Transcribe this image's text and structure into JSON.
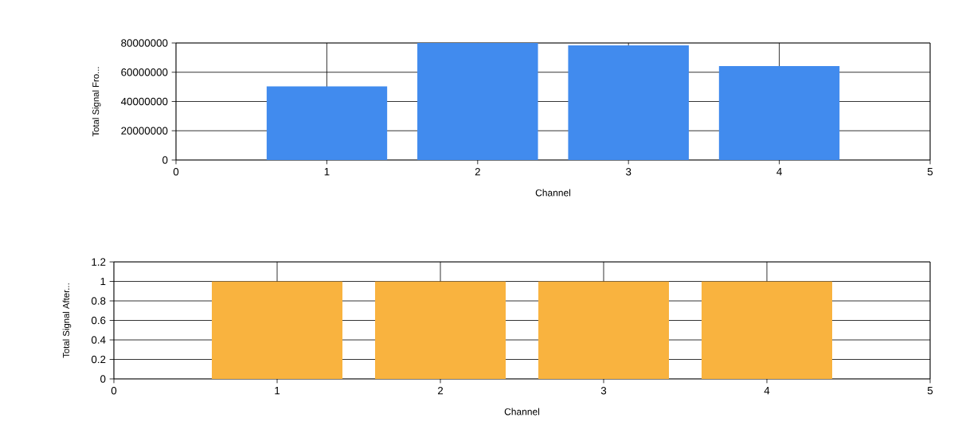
{
  "chart_data": [
    {
      "type": "bar",
      "x": [
        1,
        2,
        3,
        4
      ],
      "values": [
        50400000,
        80000000,
        78400000,
        64200000
      ],
      "color": "#418bee",
      "xlim": [
        0,
        5
      ],
      "xticks": [
        0,
        1,
        2,
        3,
        4,
        5
      ],
      "ylim": [
        0,
        80000000
      ],
      "yticks": [
        0,
        20000000,
        40000000,
        60000000,
        80000000
      ],
      "xlabel": "Channel",
      "ylabel": "Total Signal Fro...",
      "grid": true
    },
    {
      "type": "bar",
      "x": [
        1,
        2,
        3,
        4
      ],
      "values": [
        1,
        1,
        1,
        1
      ],
      "color": "#f9b33f",
      "xlim": [
        0,
        5
      ],
      "xticks": [
        0,
        1,
        2,
        3,
        4,
        5
      ],
      "ylim": [
        0,
        1.2
      ],
      "yticks": [
        0,
        0.2,
        0.4,
        0.6,
        0.8,
        1,
        1.2
      ],
      "xlabel": "Channel",
      "ylabel": "Total Signal After...",
      "grid": true
    }
  ]
}
